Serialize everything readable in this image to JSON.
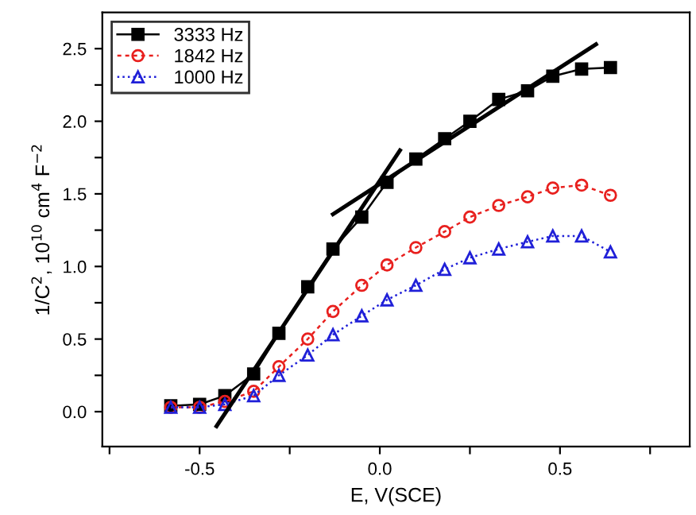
{
  "chart_data": {
    "type": "line",
    "xlabel": "E, V(SCE)",
    "ylabel": "1/C$^{2}$, 10$^{10}$ cm$^{4}$ F$^{−2}$",
    "x": [
      -0.58,
      -0.5,
      -0.43,
      -0.35,
      -0.28,
      -0.2,
      -0.13,
      -0.05,
      0.02,
      0.1,
      0.18,
      0.25,
      0.33,
      0.41,
      0.48,
      0.56,
      0.64
    ],
    "xlim": [
      -0.77,
      0.86
    ],
    "ylim": [
      -0.24,
      2.75
    ],
    "xticks": [
      {
        "value": -0.75,
        "label": null
      },
      -0.5,
      {
        "value": -0.25,
        "label": null
      },
      {
        "value": 0,
        "label": "0.0"
      },
      {
        "value": 0.25,
        "label": null
      },
      0.5,
      {
        "value": 0.75,
        "label": null
      }
    ],
    "yticks": [
      {
        "value": 0,
        "label": "0.0"
      },
      {
        "value": 0.25,
        "label": null
      },
      0.5,
      {
        "value": 0.75,
        "label": null
      },
      {
        "value": 1,
        "label": "1.0"
      },
      {
        "value": 1.25,
        "label": null
      },
      1.5,
      {
        "value": 1.75,
        "label": null
      },
      {
        "value": 2,
        "label": "2.0"
      },
      {
        "value": 2.25,
        "label": null
      },
      2.5
    ],
    "grid": false,
    "legend": "top left",
    "series": [
      {
        "name": "3333 Hz",
        "color": "#000000",
        "marker": "square",
        "line_style": "solid",
        "values": [
          0.04,
          0.05,
          0.11,
          0.26,
          0.54,
          0.86,
          1.12,
          1.34,
          1.58,
          1.74,
          1.88,
          2.0,
          2.15,
          2.21,
          2.31,
          2.36,
          2.37
        ]
      },
      {
        "name": "1842 Hz",
        "color": "#e8201e",
        "marker": "circle",
        "line_style": "dashed",
        "values": [
          0.03,
          0.03,
          0.07,
          0.14,
          0.31,
          0.5,
          0.69,
          0.87,
          1.01,
          1.13,
          1.24,
          1.34,
          1.42,
          1.48,
          1.54,
          1.56,
          1.49
        ]
      },
      {
        "name": "1000 Hz",
        "color": "#2020d8",
        "marker": "triangle",
        "line_style": "dotted",
        "values": [
          0.03,
          0.03,
          0.05,
          0.11,
          0.25,
          0.39,
          0.53,
          0.66,
          0.77,
          0.87,
          0.98,
          1.06,
          1.12,
          1.17,
          1.21,
          1.21,
          1.1
        ]
      },
      {
        "type": "line",
        "color": "#000000",
        "marker": "none",
        "line_style": "solid",
        "x": [
          -0.453,
          0.056
        ],
        "values": [
          -0.1,
          1.8
        ]
      },
      {
        "type": "line",
        "color": "#000000",
        "marker": "none",
        "line_style": "solid",
        "x": [
          -0.13,
          0.6
        ],
        "values": [
          1.36,
          2.53
        ]
      }
    ]
  }
}
